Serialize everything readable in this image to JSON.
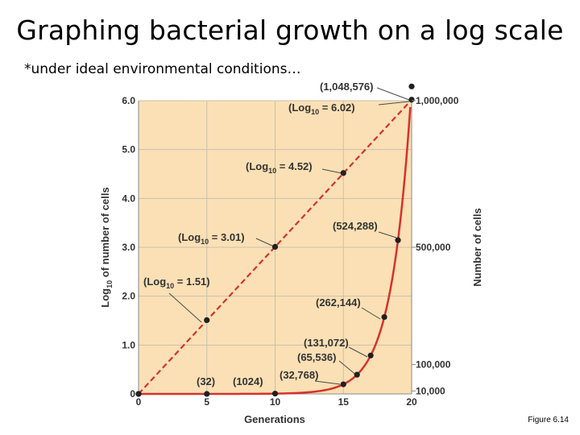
{
  "slide": {
    "title": "Graphing bacterial growth on a log scale",
    "subtitle": "*under ideal environmental conditions…",
    "figure_note": "Figure 6.14"
  },
  "colors": {
    "plot_background": "#fbe0b5",
    "grid": "#c9bfae",
    "curve": "#d6312b",
    "point": "#231f20",
    "text": "#333333"
  },
  "chart_data": {
    "type": "line",
    "xlabel": "Generations",
    "ylabel_left": "Log10 of number of cells",
    "ylabel_right": "Number of cells",
    "xlim": [
      0,
      20
    ],
    "ylim_left": [
      0,
      6
    ],
    "x_ticks": [
      "0",
      "5",
      "10",
      "15",
      "20"
    ],
    "y_ticks_left": [
      "0",
      "1.0",
      "2.0",
      "3.0",
      "4.0",
      "5.0",
      "6.0"
    ],
    "y_ticks_right": [
      "10,000",
      "100,000",
      "500,000",
      "1,000,000"
    ],
    "y_ticks_right_values": [
      10000,
      100000,
      500000,
      1000000
    ],
    "grid": true,
    "series": [
      {
        "style": "dashed",
        "scale": "log",
        "points": [
          {
            "x": 0,
            "y": 0
          },
          {
            "x": 5,
            "y": 1.51
          },
          {
            "x": 10,
            "y": 3.01
          },
          {
            "x": 15,
            "y": 4.52
          },
          {
            "x": 20,
            "y": 6.02
          }
        ]
      },
      {
        "style": "solid",
        "scale": "arithmetic",
        "points": [
          {
            "x": 0,
            "y": 1
          },
          {
            "x": 5,
            "y": 32
          },
          {
            "x": 10,
            "y": 1024
          },
          {
            "x": 15,
            "y": 32768
          },
          {
            "x": 16,
            "y": 65536
          },
          {
            "x": 17,
            "y": 131072
          },
          {
            "x": 18,
            "y": 262144
          },
          {
            "x": 19,
            "y": 524288
          },
          {
            "x": 20,
            "y": 1048576
          }
        ]
      }
    ],
    "annotations": {
      "a32": "(32)",
      "a1024": "(1024)",
      "a32768": "(32,768)",
      "a65536": "(65,536)",
      "a131072": "(131,072)",
      "a262144": "(262,144)",
      "a524288": "(524,288)",
      "a1048576": "(1,048,576)",
      "log_prefix": "(Log",
      "log_sub": "10",
      "log151": " = 1.51)",
      "log301": " = 3.01)",
      "log452": " = 4.52)",
      "log602": " = 6.02)"
    }
  }
}
